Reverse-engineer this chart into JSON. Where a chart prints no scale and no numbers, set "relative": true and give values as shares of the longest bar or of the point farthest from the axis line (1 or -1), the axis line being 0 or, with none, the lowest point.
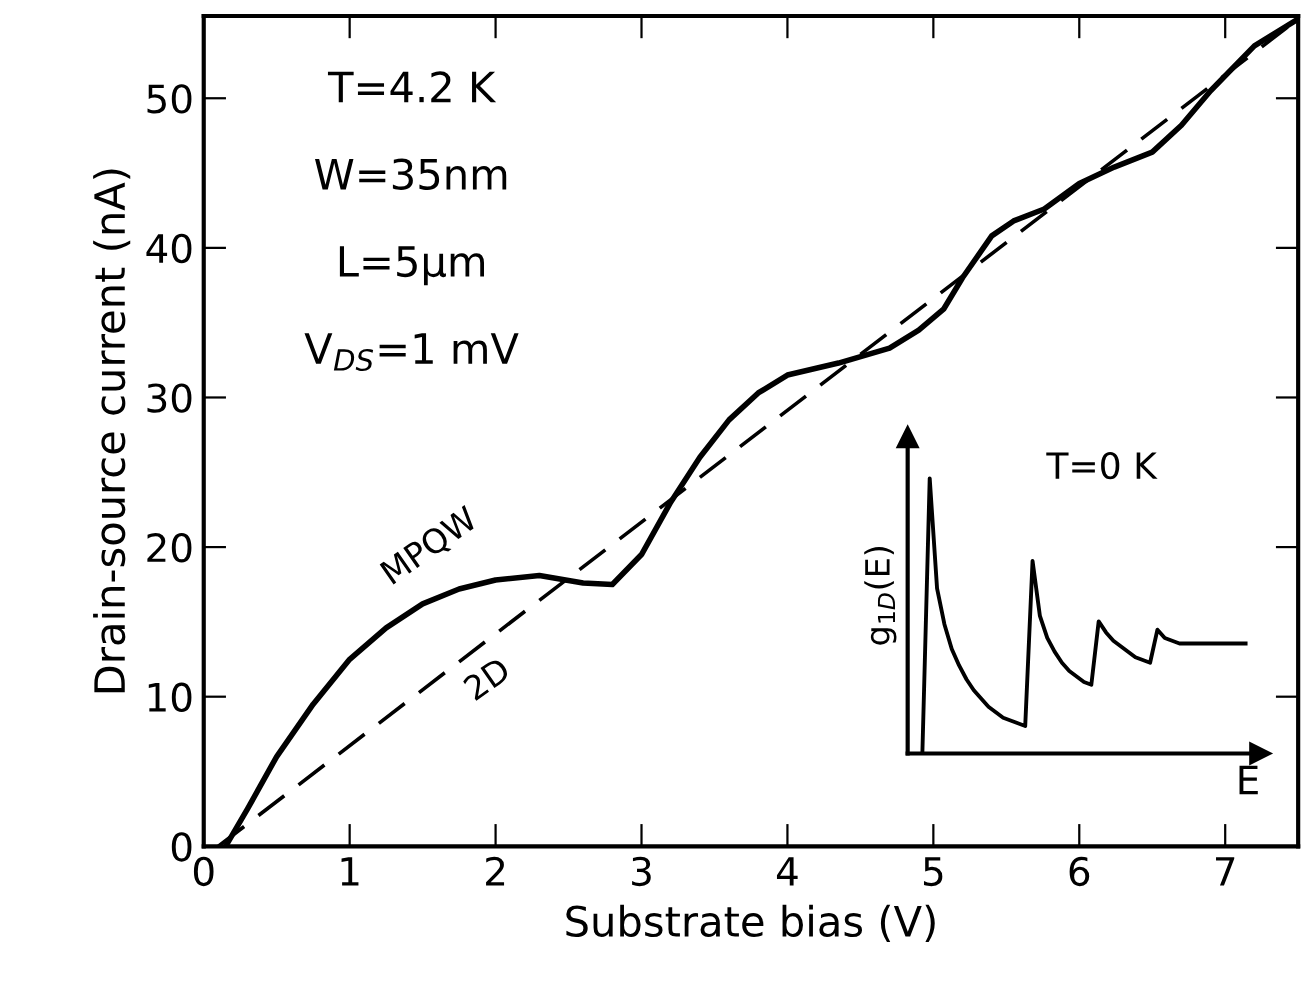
{
  "chart_data": [
    {
      "type": "line",
      "xlabel": "Substrate bias (V)",
      "ylabel": "Drain-source current (nA)",
      "xlim": [
        0,
        7.5
      ],
      "ylim": [
        0,
        55.5
      ],
      "xticks": [
        0,
        1,
        2,
        3,
        4,
        5,
        6,
        7
      ],
      "yticks": [
        0,
        10,
        20,
        30,
        40,
        50
      ],
      "grid": false,
      "legend": false,
      "marker": "none",
      "annotations": [
        "T=4.2 K",
        "W=35nm",
        "L=5μm",
        "V$_{DS}$=1 mV"
      ],
      "series": [
        {
          "name": "MPQW",
          "color": "#000000",
          "line_style": "solid",
          "x": [
            0.15,
            0.3,
            0.5,
            0.75,
            1.0,
            1.25,
            1.5,
            1.75,
            2.0,
            2.3,
            2.6,
            2.8,
            3.0,
            3.2,
            3.4,
            3.6,
            3.8,
            4.0,
            4.35,
            4.7,
            4.9,
            5.07,
            5.2,
            5.4,
            5.55,
            5.76,
            6.0,
            6.24,
            6.5,
            6.7,
            6.9,
            7.2,
            7.5
          ],
          "values": [
            0,
            2.5,
            6,
            9.5,
            12.5,
            14.6,
            16.2,
            17.2,
            17.8,
            18.1,
            17.6,
            17.5,
            19.5,
            23,
            26,
            28.5,
            30.3,
            31.5,
            32.3,
            33.3,
            34.5,
            35.9,
            38,
            40.8,
            41.8,
            42.6,
            44.3,
            45.4,
            46.4,
            48.2,
            50.5,
            53.5,
            55.3
          ]
        },
        {
          "name": "2D",
          "color": "#000000",
          "line_style": "dashed",
          "x": [
            0.1,
            7.5
          ],
          "values": [
            0,
            55.3
          ]
        }
      ]
    },
    {
      "type": "line",
      "relative": true,
      "ylabel": "g$_{1D}$(E)",
      "xlabel": "E",
      "tick_labels": false,
      "grid": false,
      "marker": "none",
      "annotations": [
        "T=0 K"
      ],
      "categories": [
        null,
        null,
        null,
        null,
        null,
        null,
        null,
        null,
        null,
        null,
        null,
        null,
        null,
        null,
        null,
        null,
        null,
        null,
        null,
        null,
        null,
        null,
        null,
        null,
        null,
        null,
        null,
        null,
        null,
        null,
        null,
        null,
        null,
        null,
        null,
        null,
        null,
        null,
        null,
        null,
        null,
        null,
        null,
        null,
        null
      ],
      "series": [
        {
          "color": "#000000",
          "line_style": "solid",
          "values": [
            0,
            1.0,
            0.6,
            0.47,
            0.38,
            0.32,
            0.27,
            0.23,
            0.2,
            0.17,
            0.15,
            0.13,
            0.12,
            0.11,
            0.1,
            0.7,
            0.5,
            0.42,
            0.37,
            0.33,
            0.3,
            0.28,
            0.26,
            0.25,
            0.48,
            0.44,
            0.41,
            0.39,
            0.37,
            0.35,
            0.34,
            0.33,
            0.45,
            0.42,
            0.41,
            0.4,
            0.4,
            0.4,
            0.4,
            0.4,
            0.4,
            0.4,
            0.4,
            0.4,
            0.4
          ]
        }
      ]
    }
  ]
}
